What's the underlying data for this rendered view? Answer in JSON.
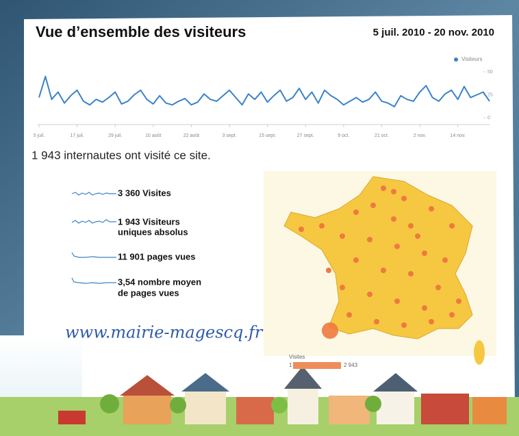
{
  "chart_data": {
    "type": "line",
    "title": "Vue d’ensemble des visiteurs",
    "subtitle": "5 juil. 2010 - 20 nov. 2010",
    "categories": [
      "5 juil.",
      null,
      null,
      null,
      null,
      null,
      "17 juil.",
      null,
      null,
      null,
      null,
      null,
      "29 juil.",
      null,
      null,
      null,
      null,
      null,
      "10 août",
      null,
      null,
      null,
      null,
      null,
      "22 août",
      null,
      null,
      null,
      null,
      null,
      "3 sept.",
      null,
      null,
      null,
      null,
      null,
      "15 sept.",
      null,
      null,
      null,
      null,
      null,
      "27 sept.",
      null,
      null,
      null,
      null,
      null,
      "9 oct.",
      null,
      null,
      null,
      null,
      null,
      "21 oct.",
      null,
      null,
      null,
      null,
      null,
      "2 nov.",
      null,
      null,
      null,
      null,
      null,
      "14 nov.",
      null,
      null,
      null,
      null,
      null
    ],
    "series": [
      {
        "name": "Visiteurs",
        "color": "#3a82c8",
        "values": [
          22,
          45,
          20,
          28,
          16,
          24,
          30,
          18,
          14,
          20,
          17,
          22,
          28,
          15,
          18,
          25,
          30,
          20,
          15,
          24,
          16,
          14,
          18,
          21,
          14,
          17,
          26,
          20,
          18,
          24,
          30,
          22,
          14,
          26,
          20,
          28,
          17,
          24,
          30,
          18,
          22,
          32,
          20,
          28,
          16,
          30,
          24,
          20,
          14,
          18,
          22,
          17,
          20,
          28,
          18,
          16,
          12,
          24,
          20,
          18,
          28,
          35,
          22,
          18,
          26,
          30,
          20,
          34,
          22,
          25,
          28,
          18
        ]
      }
    ],
    "ylim": [
      0,
      50
    ],
    "yticks": [
      0,
      25,
      50
    ],
    "grid": false,
    "legend": "top-right"
  },
  "summary": "1 943 internautes ont visité ce site.",
  "stats": [
    {
      "lines": [
        "3 360 Visites"
      ]
    },
    {
      "lines": [
        "1 943 Visiteurs",
        "uniques absolus"
      ]
    },
    {
      "lines": [
        "11 901 pages vues"
      ]
    },
    {
      "lines": [
        "3,54 nombre moyen",
        "de pages vues"
      ]
    }
  ],
  "url": "www.mairie-magescq.fr",
  "map_legend": {
    "title": "Visites",
    "min": "1",
    "max": "2 943"
  }
}
